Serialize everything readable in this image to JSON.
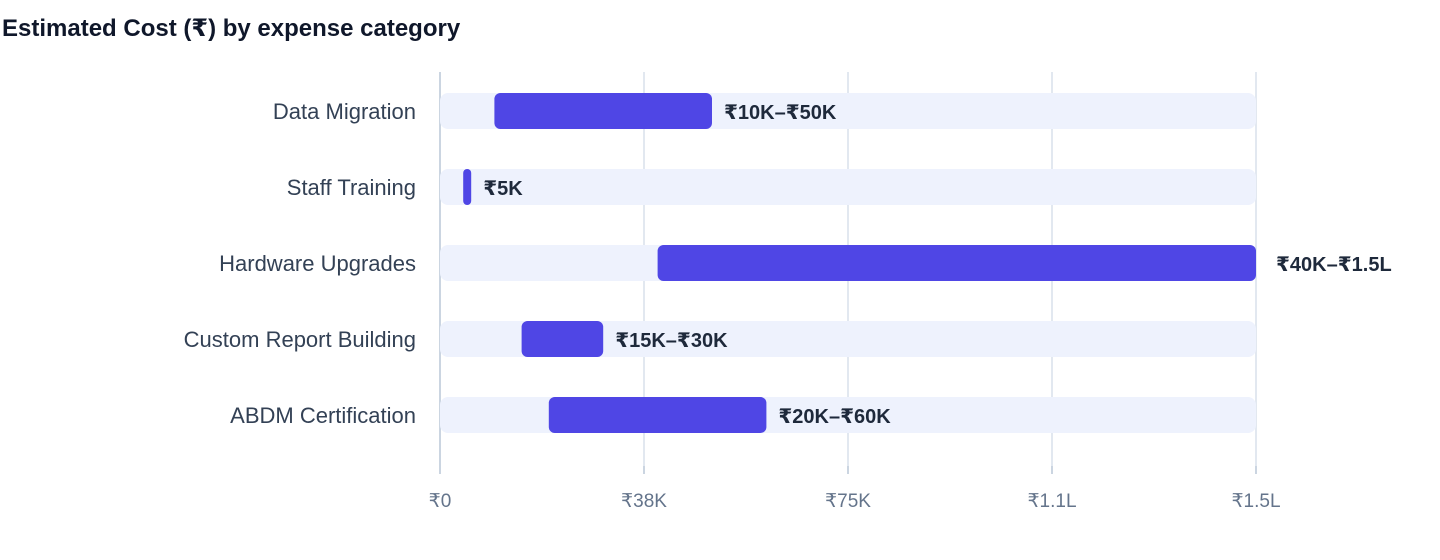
{
  "chart_data": {
    "type": "bar",
    "orientation": "horizontal",
    "subtype": "range",
    "title": "Estimated Cost (₹) by expense category",
    "xlabel": "",
    "ylabel": "",
    "xlim": [
      0,
      150000
    ],
    "grid": true,
    "legend": "none",
    "x_ticks": [
      {
        "value": 0,
        "label": "₹0"
      },
      {
        "value": 37500,
        "label": "₹38K"
      },
      {
        "value": 75000,
        "label": "₹75K"
      },
      {
        "value": 112500,
        "label": "₹1.1L"
      },
      {
        "value": 150000,
        "label": "₹1.5L"
      }
    ],
    "categories": [
      "Data Migration",
      "Staff Training",
      "Hardware Upgrades",
      "Custom Report Building",
      "ABDM Certification"
    ],
    "ranges": [
      {
        "min": 10000,
        "max": 50000,
        "label": "₹10K–₹50K"
      },
      {
        "min": 5000,
        "max": 5000,
        "label": "₹5K"
      },
      {
        "min": 40000,
        "max": 150000,
        "label": "₹40K–₹1.5L"
      },
      {
        "min": 15000,
        "max": 30000,
        "label": "₹15K–₹30K"
      },
      {
        "min": 20000,
        "max": 60000,
        "label": "₹20K–₹60K"
      }
    ],
    "colors": {
      "bar": "#4f46e5",
      "track": "#eef2fd",
      "grid": "#e2e8f0"
    }
  }
}
